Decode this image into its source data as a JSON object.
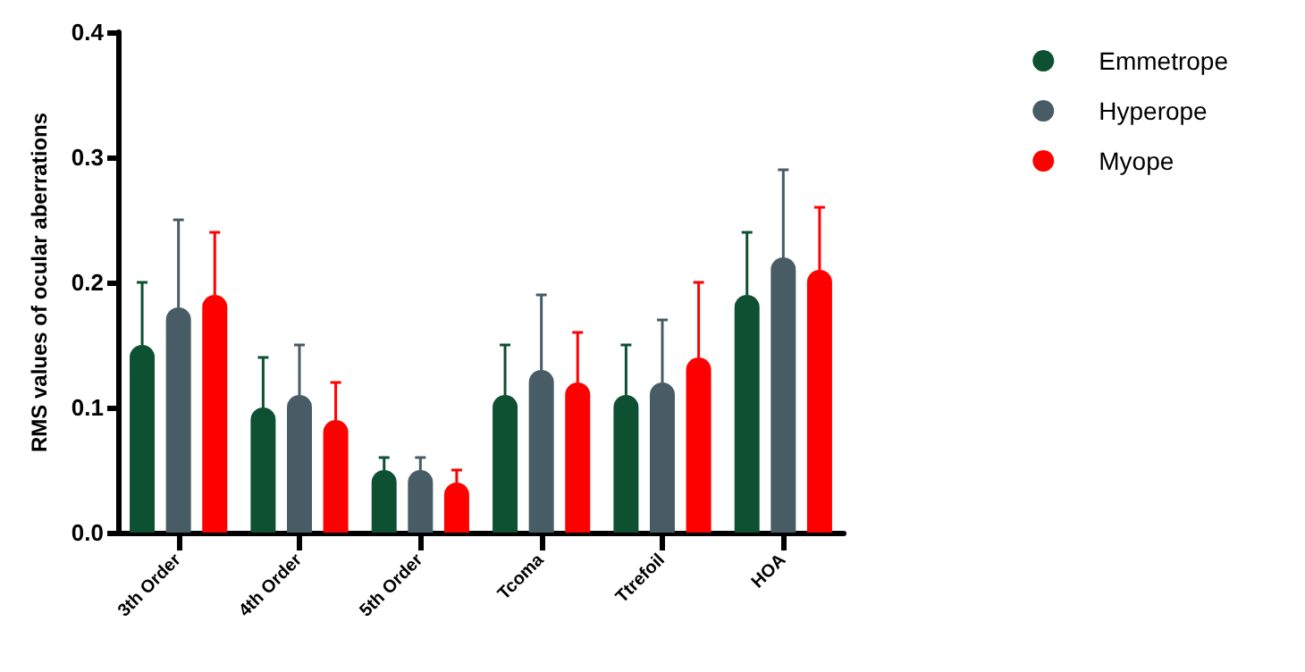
{
  "chart_data": {
    "type": "bar",
    "ylabel": "RMS values of ocular aberrations",
    "categories": [
      "3th Order",
      "4th Order",
      "5th Order",
      "Tcoma",
      "Ttrefoil",
      "HOA"
    ],
    "series": [
      {
        "name": "Emmetrope",
        "color": "#0e5032",
        "values": [
          0.15,
          0.1,
          0.05,
          0.11,
          0.11,
          0.19
        ],
        "errors": [
          [
            0.15,
            0.2
          ],
          [
            0.1,
            0.14
          ],
          [
            0.05,
            0.06
          ],
          [
            0.11,
            0.15
          ],
          [
            0.11,
            0.15
          ],
          [
            0.19,
            0.24
          ]
        ]
      },
      {
        "name": "Hyperope",
        "color": "#475c64",
        "values": [
          0.18,
          0.11,
          0.05,
          0.13,
          0.12,
          0.22
        ],
        "errors": [
          [
            0.18,
            0.25
          ],
          [
            0.11,
            0.15
          ],
          [
            0.05,
            0.06
          ],
          [
            0.13,
            0.19
          ],
          [
            0.12,
            0.17
          ],
          [
            0.22,
            0.29
          ]
        ]
      },
      {
        "name": "Myope",
        "color": "#ff0000",
        "values": [
          0.19,
          0.09,
          0.04,
          0.12,
          0.14,
          0.21
        ],
        "errors": [
          [
            0.19,
            0.24
          ],
          [
            0.09,
            0.12
          ],
          [
            0.04,
            0.05
          ],
          [
            0.12,
            0.16
          ],
          [
            0.14,
            0.2
          ],
          [
            0.21,
            0.26
          ]
        ]
      }
    ],
    "ylim": [
      0,
      0.4
    ],
    "yticks": [
      {
        "value": 0,
        "label": "0.0"
      },
      0.1,
      0.2,
      0.3,
      0.4
    ],
    "grid": false,
    "legend": "top right"
  }
}
